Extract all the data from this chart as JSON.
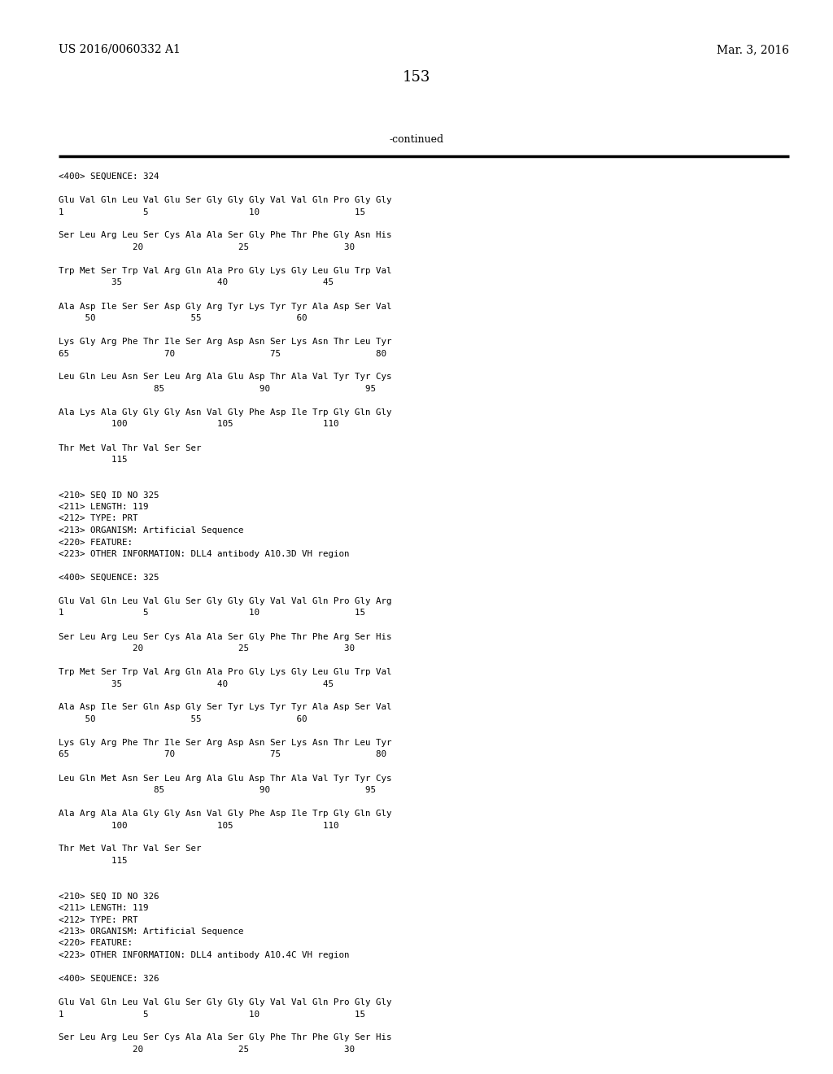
{
  "header_left": "US 2016/0060332 A1",
  "header_right": "Mar. 3, 2016",
  "page_number": "153",
  "continued_text": "-continued",
  "background_color": "#ffffff",
  "text_color": "#000000",
  "content": [
    "<400> SEQUENCE: 324",
    "",
    "Glu Val Gln Leu Val Glu Ser Gly Gly Gly Val Val Gln Pro Gly Gly",
    "1               5                   10                  15",
    "",
    "Ser Leu Arg Leu Ser Cys Ala Ala Ser Gly Phe Thr Phe Gly Asn His",
    "              20                  25                  30",
    "",
    "Trp Met Ser Trp Val Arg Gln Ala Pro Gly Lys Gly Leu Glu Trp Val",
    "          35                  40                  45",
    "",
    "Ala Asp Ile Ser Ser Asp Gly Arg Tyr Lys Tyr Tyr Ala Asp Ser Val",
    "     50                  55                  60",
    "",
    "Lys Gly Arg Phe Thr Ile Ser Arg Asp Asn Ser Lys Asn Thr Leu Tyr",
    "65                  70                  75                  80",
    "",
    "Leu Gln Leu Asn Ser Leu Arg Ala Glu Asp Thr Ala Val Tyr Tyr Cys",
    "                  85                  90                  95",
    "",
    "Ala Lys Ala Gly Gly Gly Asn Val Gly Phe Asp Ile Trp Gly Gln Gly",
    "          100                 105                 110",
    "",
    "Thr Met Val Thr Val Ser Ser",
    "          115",
    "",
    "",
    "<210> SEQ ID NO 325",
    "<211> LENGTH: 119",
    "<212> TYPE: PRT",
    "<213> ORGANISM: Artificial Sequence",
    "<220> FEATURE:",
    "<223> OTHER INFORMATION: DLL4 antibody A10.3D VH region",
    "",
    "<400> SEQUENCE: 325",
    "",
    "Glu Val Gln Leu Val Glu Ser Gly Gly Gly Val Val Gln Pro Gly Arg",
    "1               5                   10                  15",
    "",
    "Ser Leu Arg Leu Ser Cys Ala Ala Ser Gly Phe Thr Phe Arg Ser His",
    "              20                  25                  30",
    "",
    "Trp Met Ser Trp Val Arg Gln Ala Pro Gly Lys Gly Leu Glu Trp Val",
    "          35                  40                  45",
    "",
    "Ala Asp Ile Ser Gln Asp Gly Ser Tyr Lys Tyr Tyr Ala Asp Ser Val",
    "     50                  55                  60",
    "",
    "Lys Gly Arg Phe Thr Ile Ser Arg Asp Asn Ser Lys Asn Thr Leu Tyr",
    "65                  70                  75                  80",
    "",
    "Leu Gln Met Asn Ser Leu Arg Ala Glu Asp Thr Ala Val Tyr Tyr Cys",
    "                  85                  90                  95",
    "",
    "Ala Arg Ala Ala Gly Gly Asn Val Gly Phe Asp Ile Trp Gly Gln Gly",
    "          100                 105                 110",
    "",
    "Thr Met Val Thr Val Ser Ser",
    "          115",
    "",
    "",
    "<210> SEQ ID NO 326",
    "<211> LENGTH: 119",
    "<212> TYPE: PRT",
    "<213> ORGANISM: Artificial Sequence",
    "<220> FEATURE:",
    "<223> OTHER INFORMATION: DLL4 antibody A10.4C VH region",
    "",
    "<400> SEQUENCE: 326",
    "",
    "Glu Val Gln Leu Val Glu Ser Gly Gly Gly Val Val Gln Pro Gly Gly",
    "1               5                   10                  15",
    "",
    "Ser Leu Arg Leu Ser Cys Ala Ala Ser Gly Phe Thr Phe Gly Ser His",
    "              20                  25                  30"
  ]
}
